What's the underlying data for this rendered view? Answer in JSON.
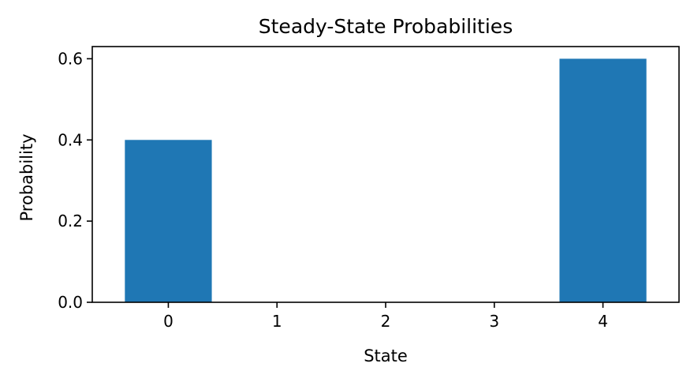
{
  "chart_data": {
    "type": "bar",
    "title": "Steady-State Probabilities",
    "xlabel": "State",
    "ylabel": "Probability",
    "categories": [
      0,
      1,
      2,
      3,
      4
    ],
    "values": [
      0.4,
      0.0,
      0.0,
      0.0,
      0.6
    ],
    "ylim": [
      0,
      0.63
    ],
    "yticks": [
      0.0,
      0.2,
      0.4,
      0.6
    ],
    "ytick_labels": [
      "0.0",
      "0.2",
      "0.4",
      "0.6"
    ],
    "xtick_labels": [
      "0",
      "1",
      "2",
      "3",
      "4"
    ],
    "grid": false,
    "legend": "none",
    "bar_color": "#1f77b4"
  }
}
